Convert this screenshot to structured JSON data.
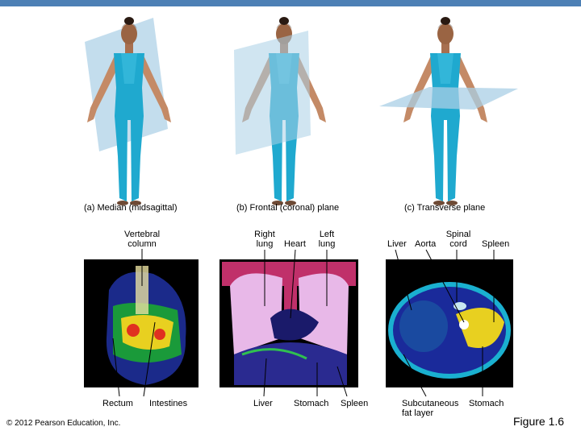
{
  "panels": [
    {
      "caption": "(a) Median (midsagittal)",
      "labels_top": [
        "Vertebral column"
      ],
      "labels_bottom": [
        "Rectum",
        "Intestines"
      ]
    },
    {
      "caption": "(b) Frontal (coronal) plane",
      "labels_top": [
        "Right lung",
        "Heart",
        "Left lung"
      ],
      "labels_bottom": [
        "Liver",
        "Stomach",
        "Spleen"
      ]
    },
    {
      "caption": "(c) Transverse plane",
      "labels_top": [
        "Liver",
        "Aorta",
        "Spinal cord",
        "Spleen"
      ],
      "labels_bottom": [
        "Subcutaneous fat layer",
        "Stomach"
      ]
    }
  ],
  "copyright": "© 2012 Pearson Education, Inc.",
  "figure_label": "Figure 1.6"
}
